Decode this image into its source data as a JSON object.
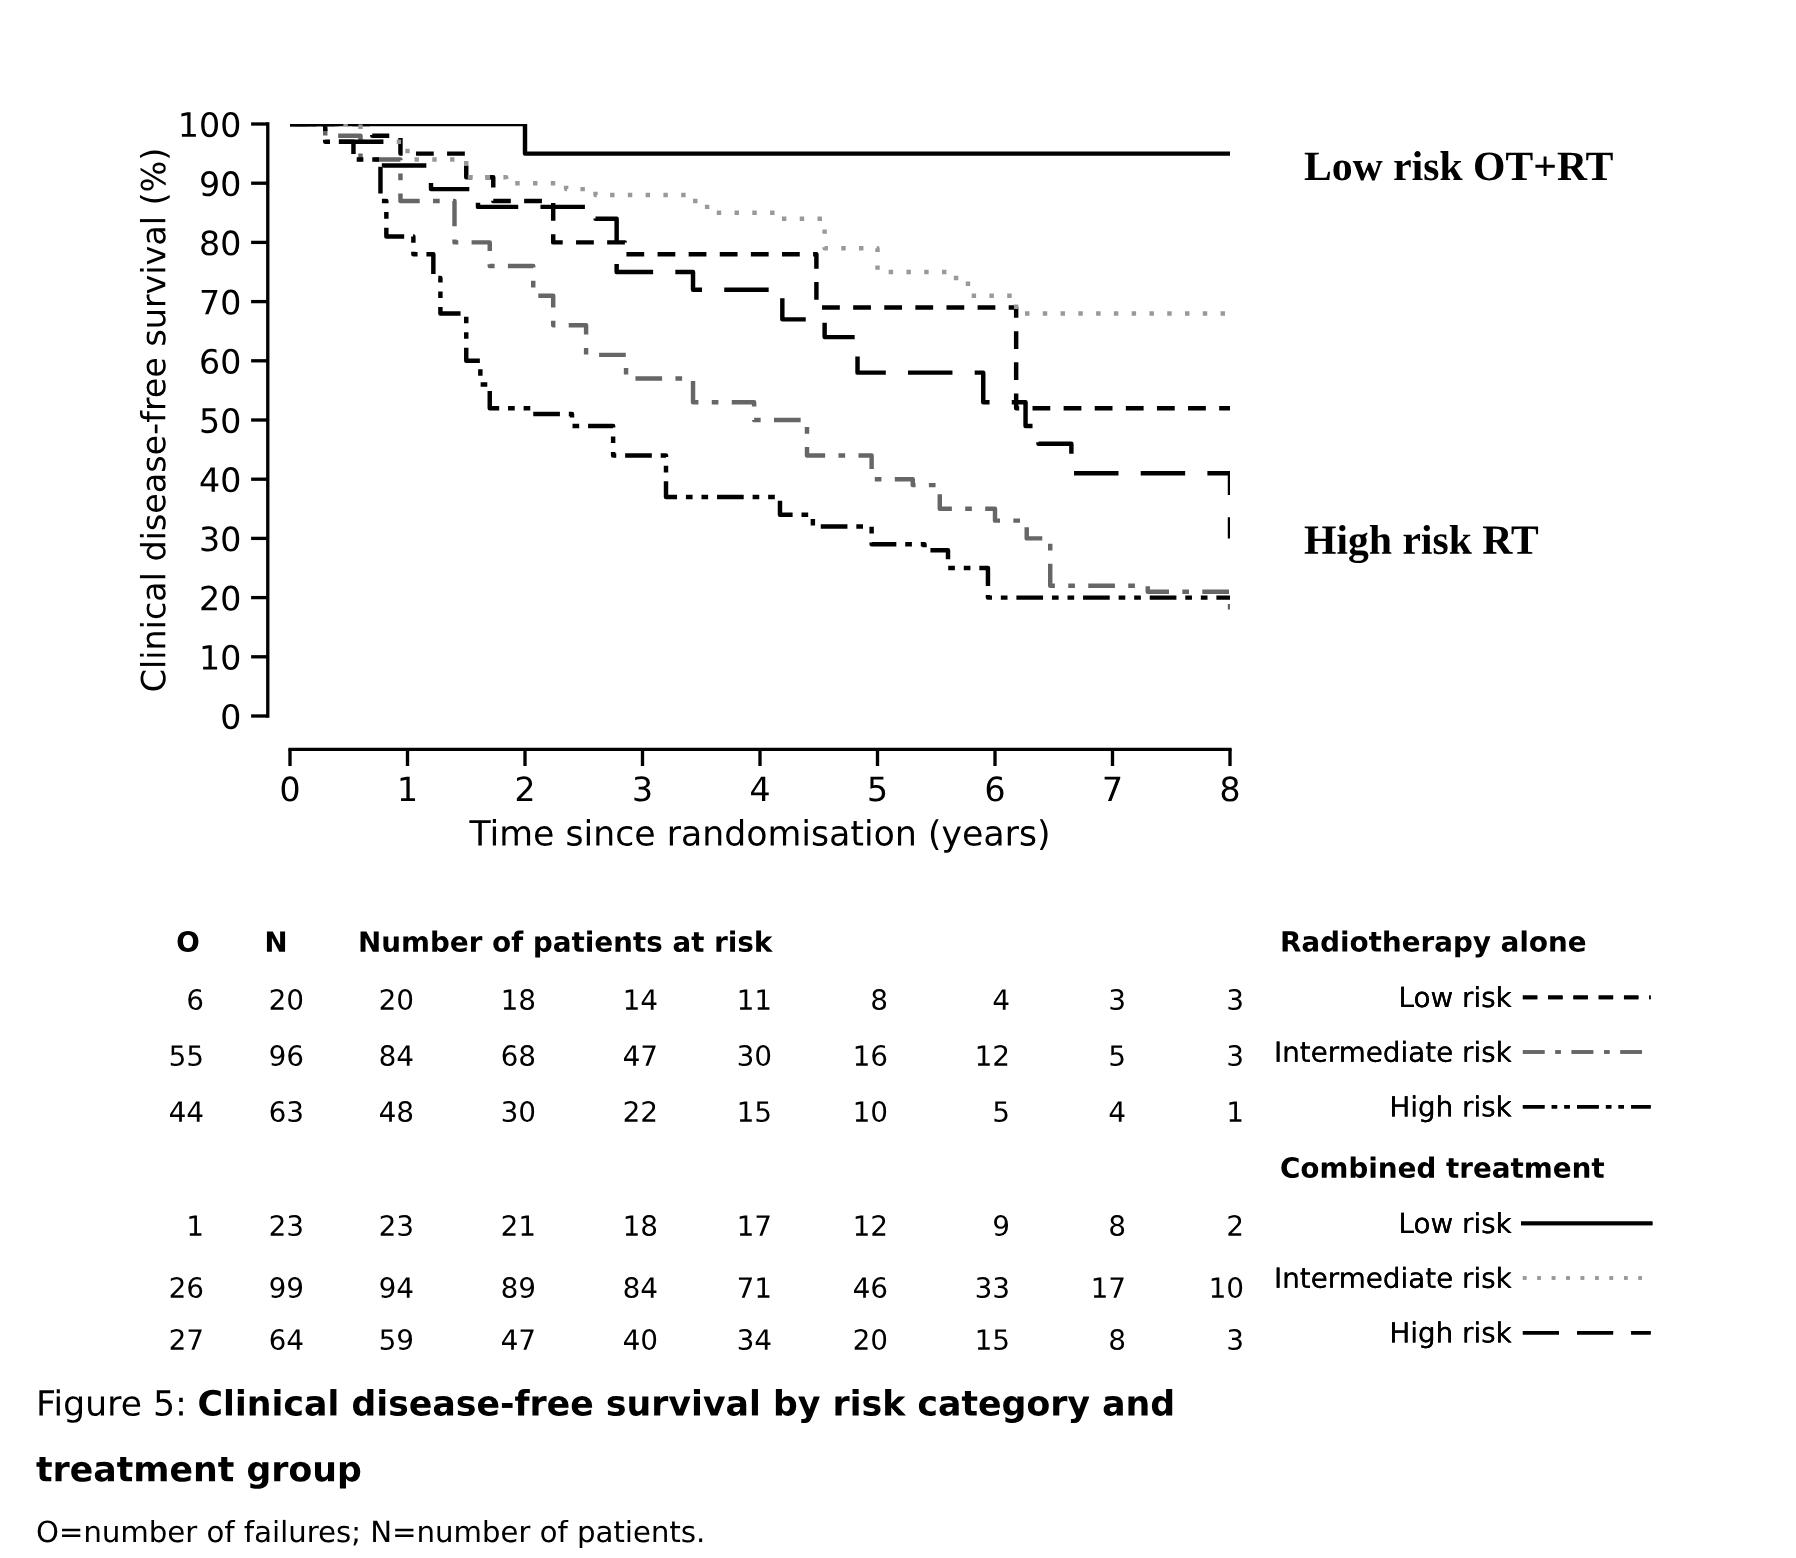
{
  "chart_data": {
    "type": "step",
    "ylabel": "Clinical disease-free survival (%)",
    "xlabel": "Time since randomisation (years)",
    "xlim": [
      0,
      8
    ],
    "xticks": [
      0,
      1,
      2,
      3,
      4,
      5,
      6,
      7,
      8
    ],
    "ylim": [
      0,
      100
    ],
    "yticks": [
      0,
      10,
      20,
      30,
      40,
      50,
      60,
      70,
      80,
      90,
      100
    ],
    "grid": false,
    "legend": "bottom right",
    "series": [
      {
        "name": "Low risk",
        "color": "#000000",
        "line_style": "dashed",
        "x": [
          0,
          0.7,
          0.94,
          1.5,
          1.73,
          2.24,
          2.85,
          4.48,
          6.18,
          8
        ],
        "values": [
          100,
          98,
          95,
          91,
          87,
          80,
          78,
          69,
          52,
          52
        ]
      },
      {
        "name": "Intermediate risk",
        "color": "#666666",
        "line_style": "dashdot",
        "x": [
          0,
          0.3,
          0.6,
          0.94,
          1.4,
          1.7,
          2.07,
          2.24,
          2.52,
          2.86,
          3.43,
          3.95,
          4.4,
          4.95,
          5.3,
          5.53,
          6.0,
          6.27,
          6.47,
          6.9,
          7.3,
          8
        ],
        "values": [
          100,
          98,
          94,
          87,
          80,
          76,
          71,
          66,
          61,
          57,
          53,
          50,
          44,
          40,
          39,
          35,
          33,
          30,
          22,
          22,
          21,
          18
        ]
      },
      {
        "name": "High risk",
        "color": "#000000",
        "line_style": "dashdotdot",
        "x": [
          0,
          0.3,
          0.54,
          0.77,
          0.82,
          1.05,
          1.22,
          1.28,
          1.5,
          1.62,
          1.7,
          2.07,
          2.4,
          2.75,
          3.2,
          4.17,
          4.45,
          4.95,
          5.4,
          5.6,
          5.94,
          8
        ],
        "values": [
          100,
          97,
          94,
          87,
          81,
          78,
          74,
          68,
          60,
          56,
          52,
          51,
          49,
          44,
          37,
          34,
          32,
          29,
          28,
          25,
          20,
          20
        ]
      },
      {
        "name": "Low risk",
        "color": "#000000",
        "line_style": "solid",
        "x": [
          0,
          2.0,
          8
        ],
        "values": [
          100,
          95,
          95
        ]
      },
      {
        "name": "Intermediate risk",
        "color": "#999999",
        "line_style": "dotted",
        "x": [
          0,
          0.6,
          1.0,
          1.5,
          1.84,
          2.35,
          2.6,
          3.43,
          3.55,
          4.17,
          4.55,
          5.0,
          5.6,
          5.77,
          6.18,
          8
        ],
        "values": [
          100,
          97,
          94,
          91,
          90,
          89,
          88,
          87,
          85,
          84,
          79,
          75,
          74,
          71,
          68,
          68
        ]
      },
      {
        "name": "High risk",
        "color": "#000000",
        "line_style": "longdash",
        "x": [
          0,
          0.4,
          0.8,
          1.2,
          1.6,
          2.35,
          2.6,
          2.78,
          3.43,
          4.19,
          4.55,
          4.83,
          5.9,
          6.26,
          6.37,
          6.65,
          8
        ],
        "values": [
          100,
          97,
          93,
          89,
          86,
          86,
          84,
          75,
          72,
          67,
          64,
          58,
          53,
          49,
          46,
          41,
          30
        ]
      }
    ],
    "annotations": [
      "Low risk OT+RT",
      "High risk RT",
      "O",
      "N",
      "Number of patients at risk",
      "Radiotherapy alone",
      "Combined treatment",
      "6 20 20 18 14 11 8 4 3 3",
      "55 96 84 68 47 30 16 12 5 3",
      "44 63 48 30 22 15 10 5 4 1",
      "1 23 23 21 18 17 12 9 8 2",
      "26 99 94 89 84 71 46 33 17 10",
      "27 64 59 47 40 34 20 15 8 3",
      "Figure 5:",
      "Clinical disease-free survival by risk category and treatment group",
      "O=number of failures; N=number of patients."
    ]
  }
}
